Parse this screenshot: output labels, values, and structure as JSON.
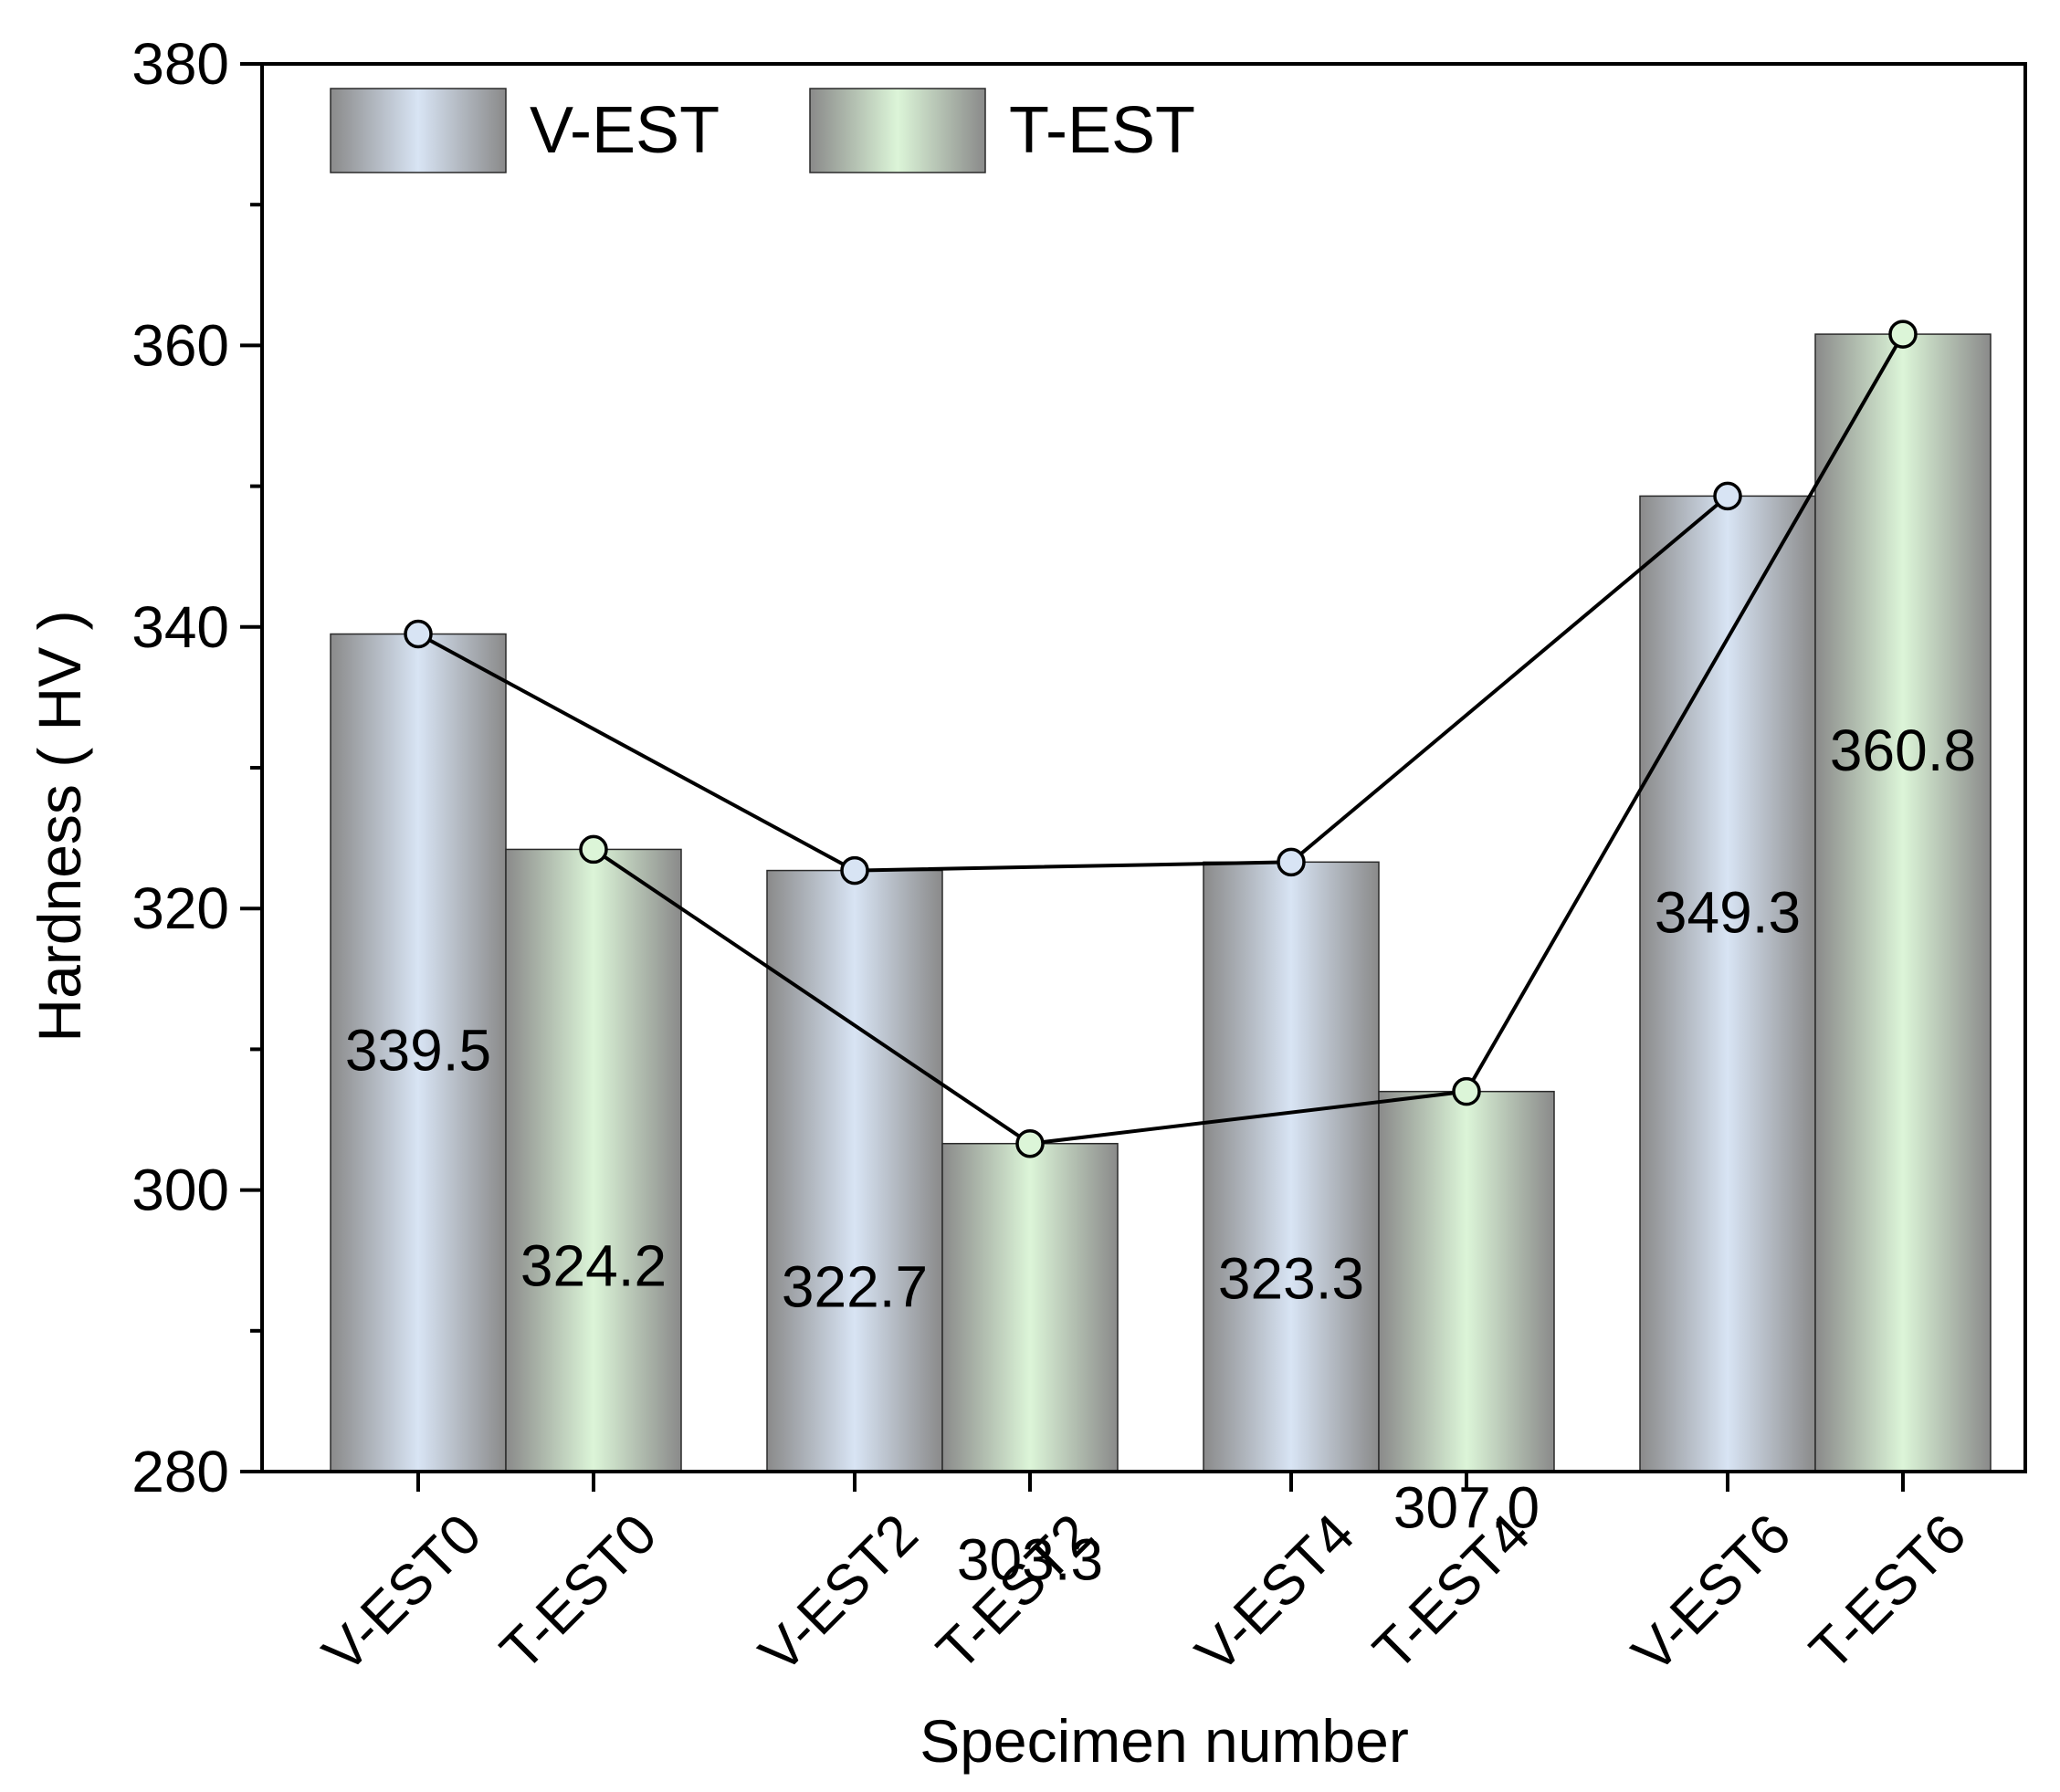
{
  "chart_data": {
    "type": "bar",
    "title": "",
    "xlabel": "Specimen number",
    "ylabel": "Hardness ( HV )",
    "ylim": [
      280,
      380
    ],
    "yticks": [
      280,
      300,
      320,
      340,
      360,
      380
    ],
    "grid": false,
    "legend_position": "top-left",
    "categories": [
      "V-EST0",
      "T-EST0",
      "V-EST2",
      "T-EST2",
      "V-EST4",
      "T-EST4",
      "V-EST6",
      "T-EST6"
    ],
    "series": [
      {
        "name": "V-EST",
        "color": "#d8e4f4",
        "points": [
          {
            "category": "V-EST0",
            "value": 339.5,
            "label": "339.5"
          },
          {
            "category": "V-EST2",
            "value": 322.7,
            "label": "322.7"
          },
          {
            "category": "V-EST4",
            "value": 323.3,
            "label": "323.3"
          },
          {
            "category": "V-EST6",
            "value": 349.3,
            "label": "349.3"
          }
        ]
      },
      {
        "name": "T-EST",
        "color": "#dcf5d8",
        "points": [
          {
            "category": "T-EST0",
            "value": 324.2,
            "label": "324.2"
          },
          {
            "category": "T-EST2",
            "value": 303.3,
            "label": "303.3"
          },
          {
            "category": "T-EST4",
            "value": 307.0,
            "label": "307.0"
          },
          {
            "category": "T-EST6",
            "value": 360.8,
            "label": "360.8"
          }
        ]
      }
    ]
  }
}
